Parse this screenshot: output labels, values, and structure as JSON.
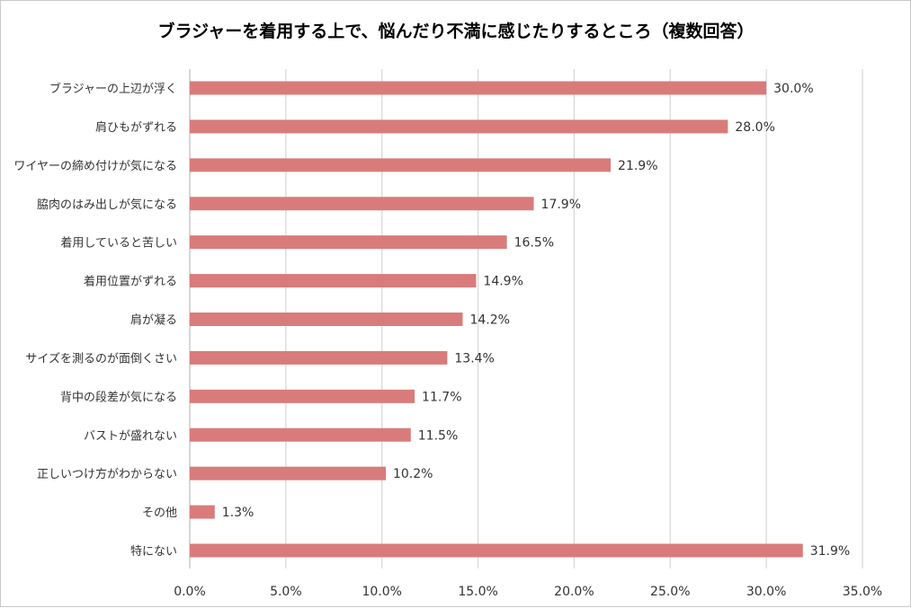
{
  "chart_data": {
    "type": "bar",
    "orientation": "horizontal",
    "title": "ブラジャーを着用する上で、悩んだり不満に感じたりするところ（複数回答）",
    "categories": [
      "ブラジャーの上辺が浮く",
      "肩ひもがずれる",
      "ワイヤーの締め付けが気になる",
      "脇肉のはみ出しが気になる",
      "着用していると苦しい",
      "着用位置がずれる",
      "肩が凝る",
      "サイズを測るのが面倒くさい",
      "背中の段差が気になる",
      "バストが盛れない",
      "正しいつけ方がわからない",
      "その他",
      "特にない"
    ],
    "values": [
      30.0,
      28.0,
      21.9,
      17.9,
      16.5,
      14.9,
      14.2,
      13.4,
      11.7,
      11.5,
      10.2,
      1.3,
      31.9
    ],
    "data_labels": [
      "30.0%",
      "28.0%",
      "21.9%",
      "17.9%",
      "16.5%",
      "14.9%",
      "14.2%",
      "13.4%",
      "11.7%",
      "11.5%",
      "10.2%",
      "1.3%",
      "31.9%"
    ],
    "xlim": [
      0,
      35
    ],
    "x_ticks": [
      0,
      5,
      10,
      15,
      20,
      25,
      30,
      35
    ],
    "x_tick_labels": [
      "0.0%",
      "5.0%",
      "10.0%",
      "15.0%",
      "20.0%",
      "25.0%",
      "30.0%",
      "35.0%"
    ],
    "xlabel": "",
    "ylabel": "",
    "grid": "vertical",
    "legend": "none",
    "bar_color": "#d97b7b",
    "grid_color": "#d9d9d9"
  }
}
